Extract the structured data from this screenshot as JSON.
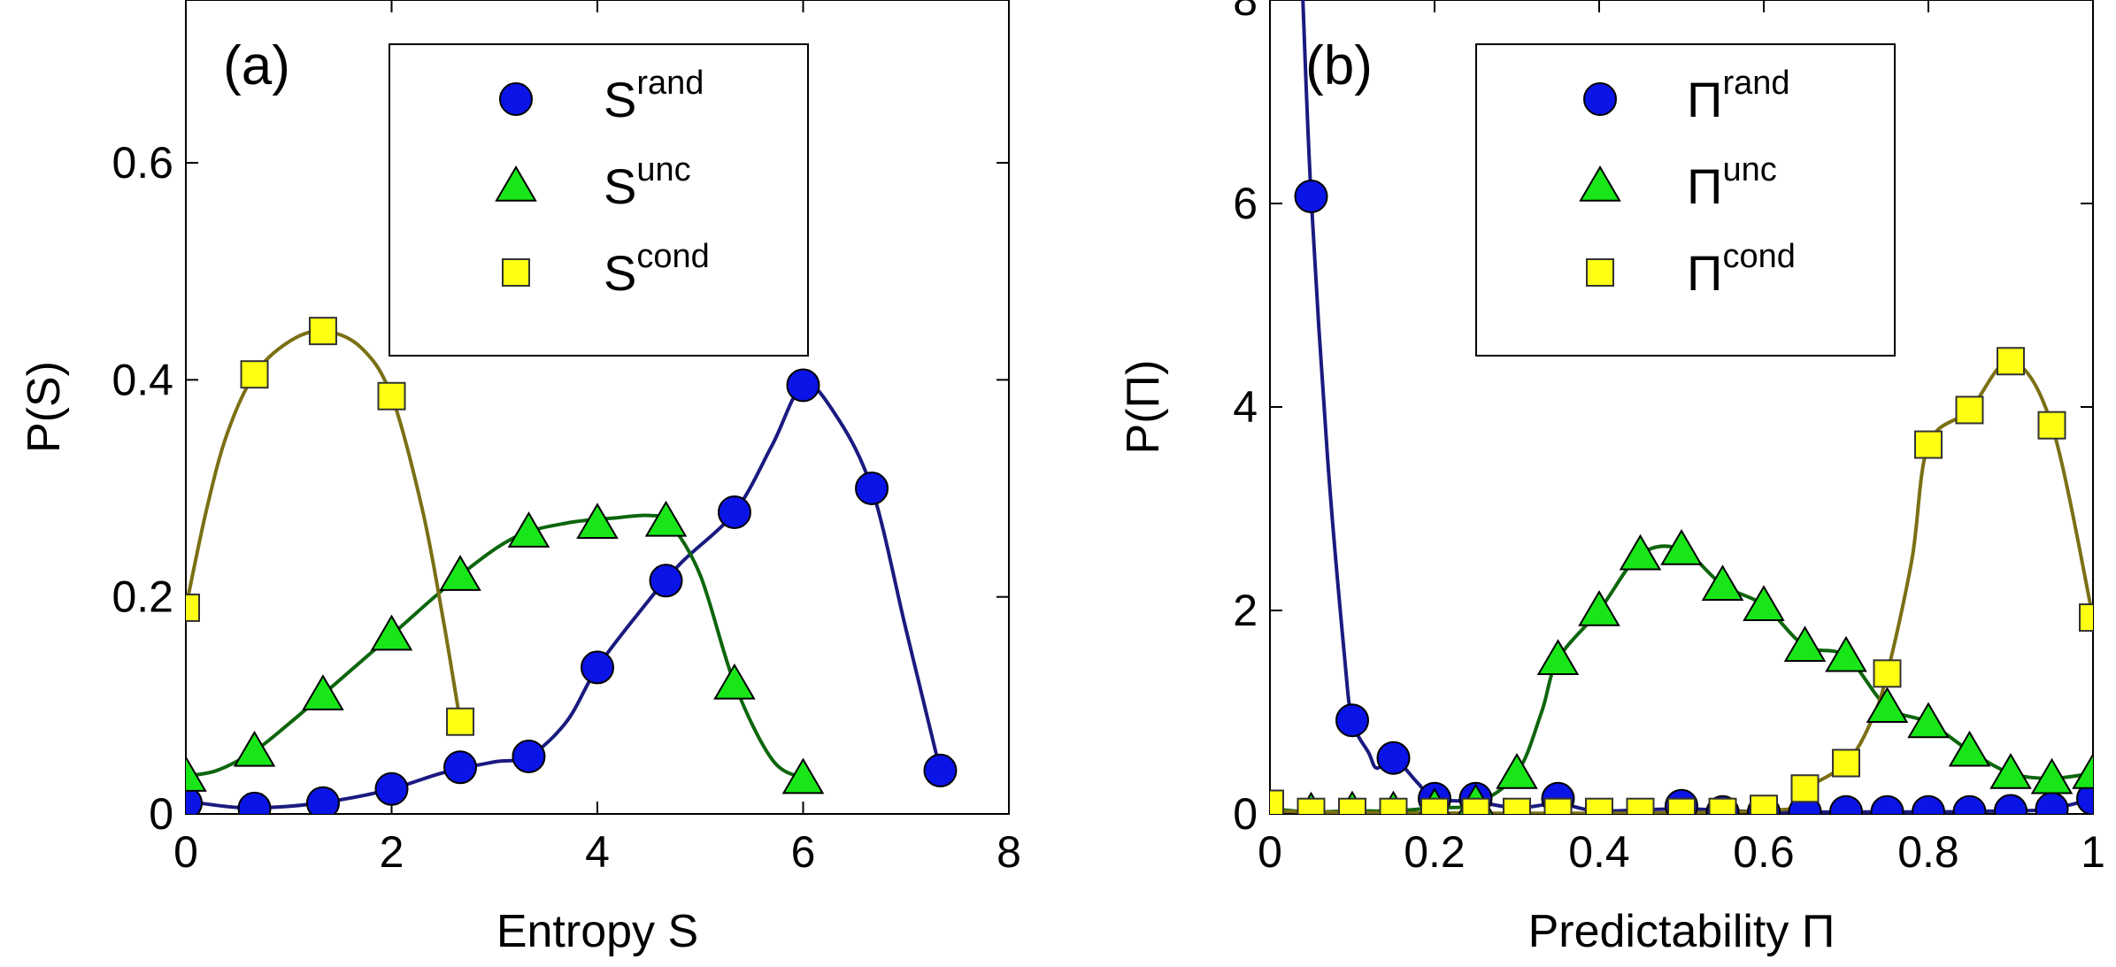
{
  "chart_data": [
    {
      "type": "line",
      "panel_label": "(a)",
      "xlabel": "Entropy S",
      "ylabel": "P(S)",
      "xlim": [
        0,
        8
      ],
      "ylim": [
        0,
        0.75
      ],
      "xticks": [
        0,
        2,
        4,
        6,
        8
      ],
      "yticks": [
        0,
        0.2,
        0.4,
        0.6
      ],
      "xtick_labels": [
        "0",
        "2",
        "4",
        "6",
        "8"
      ],
      "ytick_labels": [
        "0",
        "0.2",
        "0.4",
        "0.6"
      ],
      "legend_position": "top-right",
      "series": [
        {
          "name": "S^rand",
          "base": "S",
          "sup": "rand",
          "marker": "circle",
          "marker_color": "#0a14e6",
          "line_color": "#1a1a80",
          "x": [
            0,
            0.667,
            1.333,
            2,
            2.667,
            3.333,
            4,
            4.667,
            5.333,
            6,
            6.667,
            7.333
          ],
          "y": [
            0.01,
            0.005,
            0.01,
            0.023,
            0.043,
            0.053,
            0.135,
            0.215,
            0.278,
            0.395,
            0.3,
            0.04
          ],
          "curve": [
            [
              0,
              0.012
            ],
            [
              0.5,
              0.006
            ],
            [
              1,
              0.007
            ],
            [
              1.5,
              0.013
            ],
            [
              2,
              0.023
            ],
            [
              2.5,
              0.038
            ],
            [
              3,
              0.048
            ],
            [
              3.333,
              0.053
            ],
            [
              3.7,
              0.085
            ],
            [
              4,
              0.135
            ],
            [
              4.4,
              0.185
            ],
            [
              4.8,
              0.23
            ],
            [
              5.333,
              0.278
            ],
            [
              5.7,
              0.34
            ],
            [
              6,
              0.395
            ],
            [
              6.3,
              0.37
            ],
            [
              6.667,
              0.3
            ],
            [
              7,
              0.17
            ],
            [
              7.333,
              0.04
            ]
          ]
        },
        {
          "name": "S^unc",
          "base": "S",
          "sup": "unc",
          "marker": "triangle",
          "marker_color": "#19e619",
          "line_color": "#0d660d",
          "x": [
            0,
            0.667,
            1.333,
            2,
            2.667,
            3.333,
            4,
            4.667,
            5.333,
            6
          ],
          "y": [
            0.035,
            0.058,
            0.11,
            0.165,
            0.22,
            0.26,
            0.268,
            0.27,
            0.12,
            0.033
          ],
          "curve": [
            [
              0,
              0.035
            ],
            [
              0.3,
              0.04
            ],
            [
              0.667,
              0.058
            ],
            [
              1,
              0.083
            ],
            [
              1.333,
              0.11
            ],
            [
              2,
              0.165
            ],
            [
              2.667,
              0.22
            ],
            [
              3.2,
              0.255
            ],
            [
              3.7,
              0.268
            ],
            [
              4.2,
              0.273
            ],
            [
              4.5,
              0.275
            ],
            [
              4.7,
              0.268
            ],
            [
              5,
              0.22
            ],
            [
              5.333,
              0.12
            ],
            [
              5.7,
              0.05
            ],
            [
              6,
              0.033
            ]
          ]
        },
        {
          "name": "S^cond",
          "base": "S",
          "sup": "cond",
          "marker": "square",
          "marker_color": "#ffff14",
          "line_color": "#7a7014",
          "x": [
            0,
            0.667,
            1.333,
            2,
            2.667
          ],
          "y": [
            0.19,
            0.405,
            0.445,
            0.385,
            0.085
          ],
          "curve": [
            [
              0,
              0.19
            ],
            [
              0.2,
              0.28
            ],
            [
              0.4,
              0.35
            ],
            [
              0.667,
              0.405
            ],
            [
              1,
              0.435
            ],
            [
              1.333,
              0.445
            ],
            [
              1.7,
              0.43
            ],
            [
              2,
              0.385
            ],
            [
              2.3,
              0.28
            ],
            [
              2.5,
              0.18
            ],
            [
              2.667,
              0.085
            ]
          ]
        }
      ]
    },
    {
      "type": "line",
      "panel_label": "(b)",
      "xlabel": "Predictability Π",
      "ylabel": "P(Π)",
      "xlim": [
        0,
        1
      ],
      "ylim": [
        0,
        8
      ],
      "xticks": [
        0,
        0.2,
        0.4,
        0.6,
        0.8,
        1
      ],
      "yticks": [
        0,
        2,
        4,
        6,
        8
      ],
      "xtick_labels": [
        "0",
        "0.2",
        "0.4",
        "0.6",
        "0.8",
        "1"
      ],
      "ytick_labels": [
        "0",
        "2",
        "4",
        "6",
        "8"
      ],
      "legend_position": "top-right",
      "series": [
        {
          "name": "Π^rand",
          "base": "Π",
          "sup": "rand",
          "marker": "circle",
          "marker_color": "#0a14e6",
          "line_color": "#1a1a80",
          "x": [
            0.05,
            0.1,
            0.15,
            0.2,
            0.25,
            0.35,
            0.5,
            0.55,
            0.6,
            0.65,
            0.7,
            0.75,
            0.8,
            0.85,
            0.9,
            0.95,
            1.0
          ],
          "y": [
            6.07,
            0.92,
            0.55,
            0.15,
            0.15,
            0.15,
            0.08,
            0.02,
            0.02,
            0.02,
            0.02,
            0.02,
            0.02,
            0.02,
            0.03,
            0.05,
            0.15
          ],
          "curve": [
            [
              0.04,
              8.0
            ],
            [
              0.05,
              6.07
            ],
            [
              0.07,
              3.5
            ],
            [
              0.09,
              1.6
            ],
            [
              0.1,
              0.92
            ],
            [
              0.12,
              0.6
            ],
            [
              0.13,
              0.45
            ],
            [
              0.15,
              0.55
            ],
            [
              0.18,
              0.3
            ],
            [
              0.2,
              0.15
            ],
            [
              0.25,
              0.12
            ],
            [
              0.3,
              0.06
            ],
            [
              0.35,
              0.1
            ],
            [
              0.4,
              0.03
            ],
            [
              0.5,
              0.05
            ],
            [
              0.6,
              0.02
            ],
            [
              0.7,
              0.02
            ],
            [
              0.8,
              0.02
            ],
            [
              0.9,
              0.03
            ],
            [
              0.95,
              0.05
            ],
            [
              1.0,
              0.15
            ]
          ]
        },
        {
          "name": "Π^unc",
          "base": "Π",
          "sup": "unc",
          "marker": "triangle",
          "marker_color": "#19e619",
          "line_color": "#0d660d",
          "x": [
            0,
            0.05,
            0.1,
            0.15,
            0.2,
            0.25,
            0.3,
            0.35,
            0.4,
            0.45,
            0.5,
            0.55,
            0.6,
            0.65,
            0.7,
            0.75,
            0.8,
            0.85,
            0.9,
            0.95,
            1.0
          ],
          "y": [
            0.05,
            0.02,
            0.03,
            0.03,
            0.06,
            0.1,
            0.4,
            1.52,
            2.0,
            2.55,
            2.6,
            2.25,
            2.05,
            1.65,
            1.55,
            1.05,
            0.9,
            0.62,
            0.4,
            0.35,
            0.4
          ],
          "curve": [
            [
              0,
              0.05
            ],
            [
              0.05,
              0.02
            ],
            [
              0.1,
              0.03
            ],
            [
              0.15,
              0.03
            ],
            [
              0.2,
              0.06
            ],
            [
              0.25,
              0.1
            ],
            [
              0.3,
              0.4
            ],
            [
              0.33,
              1.0
            ],
            [
              0.35,
              1.52
            ],
            [
              0.4,
              2.0
            ],
            [
              0.45,
              2.55
            ],
            [
              0.5,
              2.6
            ],
            [
              0.55,
              2.25
            ],
            [
              0.6,
              2.05
            ],
            [
              0.65,
              1.65
            ],
            [
              0.7,
              1.55
            ],
            [
              0.75,
              1.05
            ],
            [
              0.8,
              0.9
            ],
            [
              0.85,
              0.62
            ],
            [
              0.9,
              0.4
            ],
            [
              0.95,
              0.35
            ],
            [
              1.0,
              0.4
            ]
          ]
        },
        {
          "name": "Π^cond",
          "base": "Π",
          "sup": "cond",
          "marker": "square",
          "marker_color": "#ffff14",
          "line_color": "#7a7014",
          "x": [
            0,
            0.05,
            0.1,
            0.15,
            0.2,
            0.25,
            0.3,
            0.35,
            0.4,
            0.45,
            0.5,
            0.55,
            0.6,
            0.65,
            0.7,
            0.75,
            0.8,
            0.85,
            0.9,
            0.95,
            1.0
          ],
          "y": [
            0.1,
            0.02,
            0.02,
            0.02,
            0.02,
            0.02,
            0.02,
            0.02,
            0.02,
            0.02,
            0.02,
            0.02,
            0.05,
            0.25,
            0.5,
            1.38,
            3.63,
            3.97,
            4.45,
            3.82,
            1.93
          ],
          "curve": [
            [
              0,
              0.1
            ],
            [
              0.05,
              0.02
            ],
            [
              0.6,
              0.03
            ],
            [
              0.65,
              0.25
            ],
            [
              0.7,
              0.5
            ],
            [
              0.73,
              0.9
            ],
            [
              0.75,
              1.38
            ],
            [
              0.78,
              2.5
            ],
            [
              0.8,
              3.63
            ],
            [
              0.85,
              3.97
            ],
            [
              0.9,
              4.45
            ],
            [
              0.95,
              3.82
            ],
            [
              1.0,
              1.93
            ]
          ]
        }
      ]
    }
  ]
}
